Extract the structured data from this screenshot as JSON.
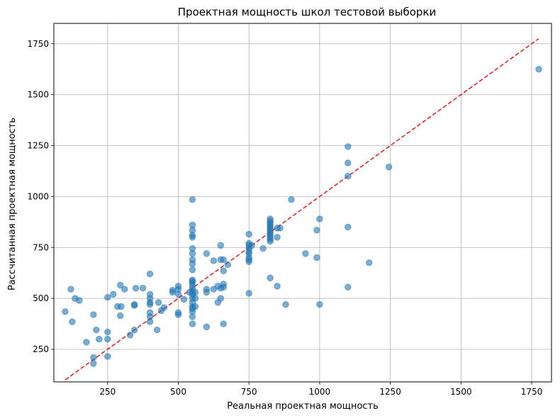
{
  "chart_data": {
    "type": "scatter",
    "title": "Проектная мощность школ тестовой выборки",
    "xlabel": "Реальная проектная мощность",
    "ylabel": "Рассчитанная проектная мощность",
    "xlim": [
      60,
      1820
    ],
    "ylim": [
      90,
      1850
    ],
    "xticks": [
      250,
      500,
      750,
      1000,
      1250,
      1500,
      1750
    ],
    "yticks": [
      250,
      500,
      750,
      1000,
      1250,
      1500,
      1750
    ],
    "grid": true,
    "point_color": "#1f77b4",
    "point_opacity": 0.6,
    "reference_line": {
      "x": [
        100,
        1775
      ],
      "y": [
        100,
        1775
      ],
      "color": "#e41a1c",
      "style": "dashed"
    },
    "points": [
      [
        100,
        435
      ],
      [
        120,
        545
      ],
      [
        125,
        385
      ],
      [
        135,
        500
      ],
      [
        150,
        490
      ],
      [
        175,
        285
      ],
      [
        200,
        180
      ],
      [
        200,
        210
      ],
      [
        200,
        420
      ],
      [
        210,
        345
      ],
      [
        220,
        300
      ],
      [
        250,
        215
      ],
      [
        250,
        300
      ],
      [
        250,
        335
      ],
      [
        250,
        505
      ],
      [
        270,
        520
      ],
      [
        285,
        460
      ],
      [
        295,
        565
      ],
      [
        295,
        415
      ],
      [
        298,
        460
      ],
      [
        310,
        545
      ],
      [
        330,
        320
      ],
      [
        345,
        345
      ],
      [
        345,
        470
      ],
      [
        345,
        465
      ],
      [
        350,
        550
      ],
      [
        375,
        550
      ],
      [
        400,
        620
      ],
      [
        400,
        520
      ],
      [
        400,
        500
      ],
      [
        400,
        480
      ],
      [
        400,
        470
      ],
      [
        400,
        430
      ],
      [
        400,
        410
      ],
      [
        400,
        385
      ],
      [
        425,
        345
      ],
      [
        430,
        480
      ],
      [
        440,
        440
      ],
      [
        450,
        455
      ],
      [
        480,
        530
      ],
      [
        480,
        540
      ],
      [
        500,
        560
      ],
      [
        500,
        545
      ],
      [
        500,
        520
      ],
      [
        500,
        430
      ],
      [
        500,
        420
      ],
      [
        520,
        495
      ],
      [
        540,
        530
      ],
      [
        550,
        985
      ],
      [
        550,
        860
      ],
      [
        550,
        835
      ],
      [
        550,
        810
      ],
      [
        550,
        800
      ],
      [
        550,
        745
      ],
      [
        550,
        720
      ],
      [
        550,
        690
      ],
      [
        550,
        670
      ],
      [
        550,
        640
      ],
      [
        550,
        590
      ],
      [
        550,
        585
      ],
      [
        550,
        575
      ],
      [
        550,
        560
      ],
      [
        550,
        545
      ],
      [
        550,
        530
      ],
      [
        550,
        520
      ],
      [
        550,
        500
      ],
      [
        550,
        480
      ],
      [
        550,
        460
      ],
      [
        550,
        450
      ],
      [
        550,
        435
      ],
      [
        550,
        410
      ],
      [
        550,
        375
      ],
      [
        560,
        530
      ],
      [
        560,
        500
      ],
      [
        560,
        460
      ],
      [
        600,
        545
      ],
      [
        600,
        530
      ],
      [
        600,
        720
      ],
      [
        600,
        360
      ],
      [
        625,
        685
      ],
      [
        625,
        545
      ],
      [
        640,
        560
      ],
      [
        640,
        480
      ],
      [
        650,
        760
      ],
      [
        650,
        690
      ],
      [
        650,
        550
      ],
      [
        650,
        500
      ],
      [
        660,
        690
      ],
      [
        660,
        635
      ],
      [
        660,
        570
      ],
      [
        660,
        555
      ],
      [
        660,
        375
      ],
      [
        675,
        665
      ],
      [
        750,
        815
      ],
      [
        750,
        770
      ],
      [
        750,
        760
      ],
      [
        750,
        745
      ],
      [
        750,
        730
      ],
      [
        750,
        720
      ],
      [
        750,
        700
      ],
      [
        750,
        690
      ],
      [
        750,
        680
      ],
      [
        750,
        525
      ],
      [
        760,
        760
      ],
      [
        800,
        745
      ],
      [
        825,
        890
      ],
      [
        825,
        880
      ],
      [
        825,
        870
      ],
      [
        825,
        860
      ],
      [
        825,
        850
      ],
      [
        825,
        840
      ],
      [
        825,
        830
      ],
      [
        825,
        820
      ],
      [
        825,
        810
      ],
      [
        825,
        800
      ],
      [
        825,
        790
      ],
      [
        825,
        780
      ],
      [
        825,
        600
      ],
      [
        850,
        845
      ],
      [
        850,
        800
      ],
      [
        850,
        560
      ],
      [
        860,
        845
      ],
      [
        880,
        470
      ],
      [
        900,
        985
      ],
      [
        950,
        720
      ],
      [
        990,
        835
      ],
      [
        990,
        700
      ],
      [
        1000,
        890
      ],
      [
        1000,
        470
      ],
      [
        1100,
        1245
      ],
      [
        1100,
        1165
      ],
      [
        1100,
        1100
      ],
      [
        1100,
        850
      ],
      [
        1100,
        555
      ],
      [
        1175,
        675
      ],
      [
        1245,
        1145
      ],
      [
        1775,
        1625
      ]
    ]
  }
}
